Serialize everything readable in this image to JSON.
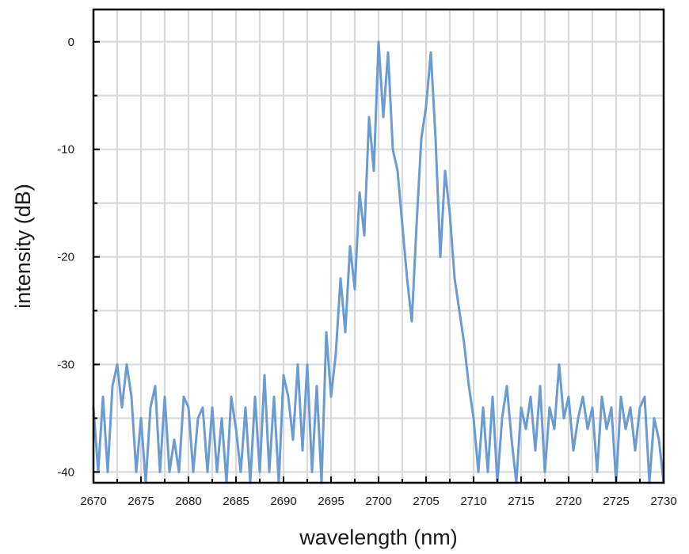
{
  "chart_data": {
    "type": "line",
    "xlabel": "wavelength (nm)",
    "ylabel": "intensity (dB)",
    "xlim": [
      2670,
      2730
    ],
    "ylim": [
      -41,
      3
    ],
    "xticks": [
      2670,
      2675,
      2680,
      2685,
      2690,
      2695,
      2700,
      2705,
      2710,
      2715,
      2720,
      2725,
      2730
    ],
    "yticks": [
      0,
      -10,
      -20,
      -30,
      -40
    ],
    "grid": true,
    "legend": "none",
    "colors": {
      "series": "#6a9bd1",
      "grid": "#d9d9de",
      "frame": "#000000"
    },
    "series": [
      {
        "x": [
          2670,
          2670.5,
          2671,
          2671.5,
          2672,
          2672.5,
          2673,
          2673.5,
          2674,
          2674.5,
          2675,
          2675.5,
          2676,
          2676.5,
          2677,
          2677.5,
          2678,
          2678.5,
          2679,
          2679.5,
          2680,
          2680.5,
          2681,
          2681.5,
          2682,
          2682.5,
          2683,
          2683.5,
          2684,
          2684.5,
          2685,
          2685.5,
          2686,
          2686.5,
          2687,
          2687.5,
          2688,
          2688.5,
          2689,
          2689.5,
          2690,
          2690.5,
          2691,
          2691.5,
          2692,
          2692.5,
          2693,
          2693.5,
          2694,
          2694.5,
          2695,
          2695.5,
          2696,
          2696.5,
          2697,
          2697.5,
          2698,
          2698.5,
          2699,
          2699.5,
          2700,
          2700.5,
          2701,
          2701.5,
          2702,
          2702.5,
          2703,
          2703.5,
          2704,
          2704.5,
          2705,
          2705.5,
          2706,
          2706.5,
          2707,
          2707.5,
          2708,
          2708.5,
          2709,
          2709.5,
          2710,
          2710.5,
          2711,
          2711.5,
          2712,
          2712.5,
          2713,
          2713.5,
          2714,
          2714.5,
          2715,
          2715.5,
          2716,
          2716.5,
          2717,
          2717.5,
          2718,
          2718.5,
          2719,
          2719.5,
          2720,
          2720.5,
          2721,
          2721.5,
          2722,
          2722.5,
          2723,
          2723.5,
          2724,
          2724.5,
          2725,
          2725.5,
          2726,
          2726.5,
          2727,
          2727.5,
          2728,
          2728.5,
          2729,
          2729.5,
          2730
        ],
        "y": [
          -34,
          -40,
          -33,
          -40,
          -32,
          -30,
          -34,
          -30,
          -33,
          -40,
          -35,
          -41,
          -34,
          -32,
          -40,
          -33,
          -40,
          -37,
          -40,
          -33,
          -34,
          -40,
          -35,
          -34,
          -40,
          -34,
          -40,
          -35,
          -41,
          -33,
          -36,
          -40,
          -34,
          -41,
          -33,
          -40,
          -31,
          -40,
          -33,
          -41,
          -31,
          -33,
          -37,
          -30,
          -38,
          -30,
          -40,
          -32,
          -41,
          -27,
          -33,
          -29,
          -22,
          -27,
          -19,
          -23,
          -14,
          -18,
          -7,
          -12,
          0,
          -7,
          -1,
          -10,
          -12,
          -17,
          -22,
          -26,
          -17,
          -9,
          -6,
          -1,
          -9,
          -20,
          -12,
          -16,
          -22,
          -25,
          -28,
          -32,
          -35,
          -40,
          -34,
          -40,
          -33,
          -41,
          -35,
          -32,
          -37,
          -41,
          -34,
          -36,
          -33,
          -38,
          -32,
          -40,
          -34,
          -36,
          -30,
          -35,
          -33,
          -38,
          -35,
          -33,
          -36,
          -34,
          -40,
          -33,
          -36,
          -34,
          -41,
          -33,
          -36,
          -34,
          -38,
          -34,
          -33,
          -41,
          -35,
          -37,
          -41
        ]
      }
    ]
  }
}
